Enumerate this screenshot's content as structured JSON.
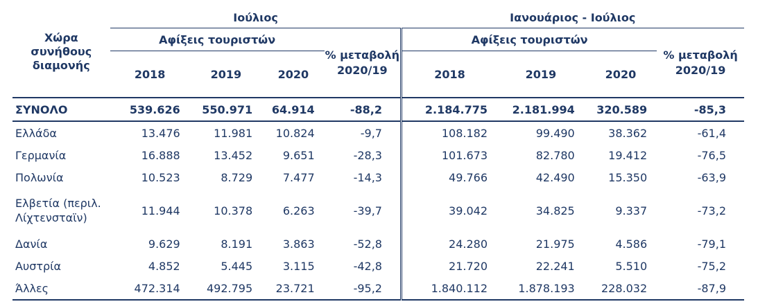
{
  "header": {
    "country_label": "Χώρα συνήθους διαμονής",
    "period1": "Ιούλιος",
    "period2": "Ιανουάριος - Ιούλιος",
    "arrivals": "Αφίξεις τουριστών",
    "change_label": "% μεταβολή 2020/19",
    "years": [
      "2018",
      "2019",
      "2020"
    ]
  },
  "total": {
    "label": "ΣΥΝΟΛΟ",
    "jul": [
      "539.626",
      "550.971",
      "64.914",
      "-88,2"
    ],
    "ytd": [
      "2.184.775",
      "2.181.994",
      "320.589",
      "-85,3"
    ]
  },
  "rows": [
    {
      "label": "Ελλάδα",
      "jul": [
        "13.476",
        "11.981",
        "10.824",
        "-9,7"
      ],
      "ytd": [
        "108.182",
        "99.490",
        "38.362",
        "-61,4"
      ]
    },
    {
      "label": "Γερμανία",
      "jul": [
        "16.888",
        "13.452",
        "9.651",
        "-28,3"
      ],
      "ytd": [
        "101.673",
        "82.780",
        "19.412",
        "-76,5"
      ]
    },
    {
      "label": "Πολωνία",
      "jul": [
        "10.523",
        "8.729",
        "7.477",
        "-14,3"
      ],
      "ytd": [
        "49.766",
        "42.490",
        "15.350",
        "-63,9"
      ]
    },
    {
      "label": "Ελβετία (περιλ. Λίχτενσταϊν)",
      "jul": [
        "11.944",
        "10.378",
        "6.263",
        "-39,7"
      ],
      "ytd": [
        "39.042",
        "34.825",
        "9.337",
        "-73,2"
      ]
    },
    {
      "label": "Δανία",
      "jul": [
        "9.629",
        "8.191",
        "3.863",
        "-52,8"
      ],
      "ytd": [
        "24.280",
        "21.975",
        "4.586",
        "-79,1"
      ]
    },
    {
      "label": "Αυστρία",
      "jul": [
        "4.852",
        "5.445",
        "3.115",
        "-42,8"
      ],
      "ytd": [
        "21.720",
        "22.241",
        "5.510",
        "-75,2"
      ]
    },
    {
      "label": "Άλλες",
      "jul": [
        "472.314",
        "492.795",
        "23.721",
        "-95,2"
      ],
      "ytd": [
        "1.840.112",
        "1.878.193",
        "228.032",
        "-87,9"
      ]
    }
  ]
}
